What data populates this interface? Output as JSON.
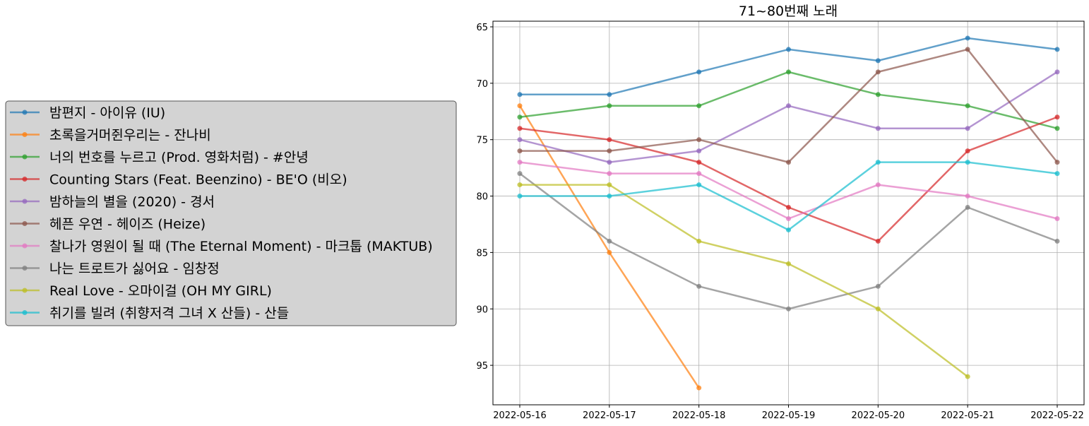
{
  "chart_data": {
    "type": "line",
    "title": "71~80번째 노래",
    "xlabel": "",
    "ylabel": "",
    "ylim": [
      98.5,
      64.5
    ],
    "y_inverted": true,
    "yticks": [
      65,
      70,
      75,
      80,
      85,
      90,
      95
    ],
    "grid": true,
    "legend_position": "left",
    "categories": [
      "2022-05-16",
      "2022-05-17",
      "2022-05-18",
      "2022-05-19",
      "2022-05-20",
      "2022-05-21",
      "2022-05-22"
    ],
    "series": [
      {
        "name": "밤편지 - 아이유 (IU)",
        "color": "#1f77b4",
        "values": [
          71,
          71,
          69,
          67,
          68,
          66,
          67
        ]
      },
      {
        "name": "초록을거머쥔우리는 - 잔나비",
        "color": "#ff7f0e",
        "values": [
          72,
          85,
          97,
          null,
          null,
          null,
          null
        ]
      },
      {
        "name": "너의 번호를 누르고 (Prod. 영화처럼) - #안녕",
        "color": "#2ca02c",
        "values": [
          73,
          72,
          72,
          69,
          71,
          72,
          74
        ]
      },
      {
        "name": "Counting Stars (Feat. Beenzino) - BE'O (비오)",
        "color": "#d62728",
        "values": [
          74,
          75,
          77,
          81,
          84,
          76,
          73
        ]
      },
      {
        "name": "밤하늘의 별을 (2020) - 경서",
        "color": "#9467bd",
        "values": [
          75,
          77,
          76,
          72,
          74,
          74,
          69
        ]
      },
      {
        "name": "헤픈 우연 - 헤이즈 (Heize)",
        "color": "#8c564b",
        "values": [
          76,
          76,
          75,
          77,
          69,
          67,
          77
        ]
      },
      {
        "name": "찰나가 영원이 될 때 (The Eternal Moment) - 마크툽 (MAKTUB)",
        "color": "#e377c2",
        "values": [
          77,
          78,
          78,
          82,
          79,
          80,
          82
        ]
      },
      {
        "name": "나는 트로트가 싫어요 - 임창정",
        "color": "#7f7f7f",
        "values": [
          78,
          84,
          88,
          90,
          88,
          81,
          84
        ]
      },
      {
        "name": "Real Love - 오마이걸 (OH MY GIRL)",
        "color": "#bcbd22",
        "values": [
          79,
          79,
          84,
          86,
          90,
          96,
          null
        ]
      },
      {
        "name": "취기를 빌려 (취향저격 그녀 X 산들) - 산들",
        "color": "#17becf",
        "values": [
          80,
          80,
          79,
          83,
          77,
          77,
          78
        ]
      }
    ]
  }
}
